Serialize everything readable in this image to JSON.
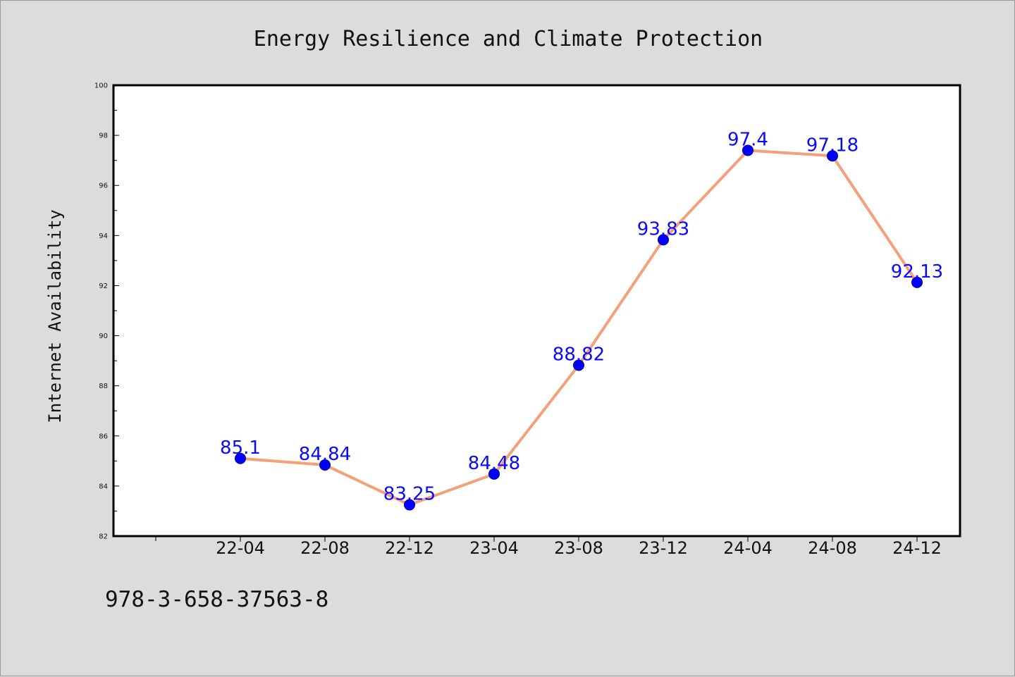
{
  "footer": {
    "code": "978-3-658-37563-8"
  },
  "colors": {
    "background": "#dcdcdc",
    "plot_background": "#ffffff",
    "line": "#f4a07a",
    "marker": "#0000ff",
    "label": "#0a0aff"
  },
  "chart_data": {
    "type": "line",
    "title": "Energy Resilience and Climate Protection",
    "xlabel": "",
    "ylabel": "Internet Availability",
    "categories": [
      "22-04",
      "22-08",
      "22-12",
      "23-04",
      "23-08",
      "23-12",
      "24-04",
      "24-08",
      "24-12"
    ],
    "series": [
      {
        "values": [
          85.1,
          84.84,
          83.25,
          84.48,
          88.82,
          93.83,
          97.4,
          97.18,
          92.13
        ]
      }
    ],
    "data_labels": [
      "85.1",
      "84.84",
      "83.25",
      "84.48",
      "88.82",
      "93.83",
      "97.4",
      "97.18",
      "92.13"
    ],
    "ylim": [
      82,
      100
    ],
    "yticks": [
      82,
      84,
      86,
      88,
      90,
      92,
      94,
      96,
      98,
      100
    ],
    "ytick_labels": [
      "82",
      "84",
      "86",
      "88",
      "90",
      "92",
      "94",
      "96",
      "98",
      "100"
    ],
    "grid": false,
    "legend": "none"
  }
}
